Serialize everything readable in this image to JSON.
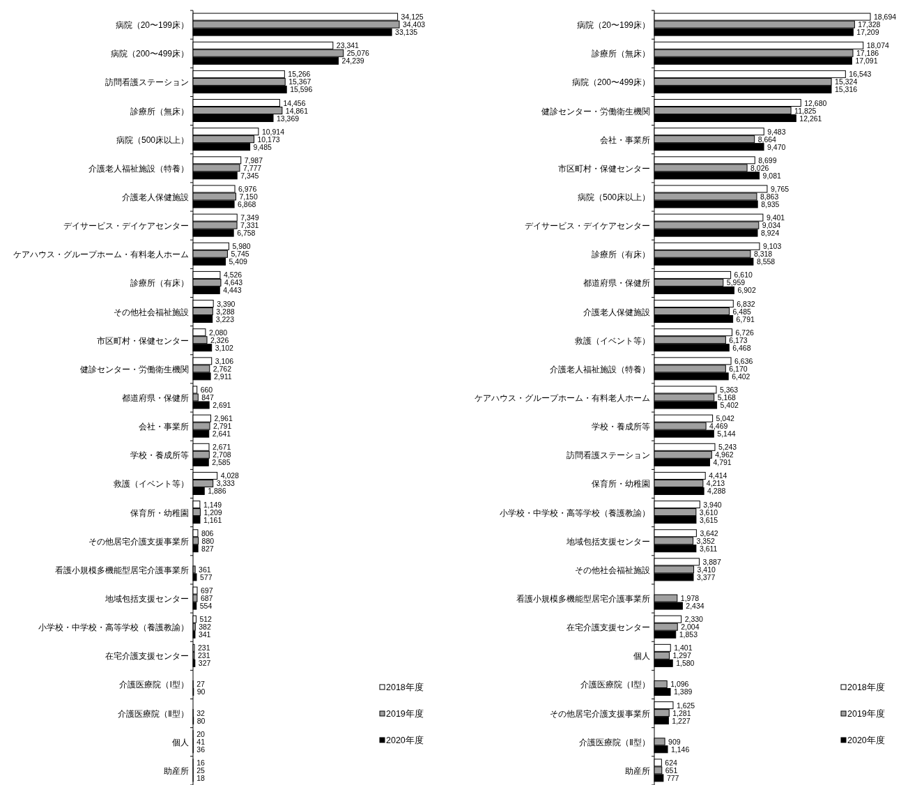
{
  "chart_data": [
    {
      "type": "bar",
      "orientation": "horizontal",
      "legend": "bottom right",
      "categories": [
        "病院（20〜199床）",
        "病院（200〜499床）",
        "訪問看護ステーション",
        "診療所（無床）",
        "病院（500床以上）",
        "介護老人福祉施設（特養）",
        "介護老人保健施設",
        "デイサービス・デイケアセンター",
        "ケアハウス・グループホーム・有料老人ホーム",
        "診療所（有床）",
        "その他社会福祉施設",
        "市区町村・保健センター",
        "健診センター・労働衛生機関",
        "都道府県・保健所",
        "会社・事業所",
        "学校・養成所等",
        "救護（イベント等）",
        "保育所・幼稚園",
        "その他居宅介護支援事業所",
        "看護小規模多機能型居宅介護事業所",
        "地域包括支援センター",
        "小学校・中学校・高等学校（養護教諭）",
        "在宅介護支援センター",
        "介護医療院（Ⅰ型）",
        "介護医療院（Ⅱ型）",
        "個人",
        "助産所"
      ],
      "series": [
        {
          "name": "2018年度",
          "color": "#ffffff",
          "values": [
            34125,
            23341,
            15266,
            14456,
            10914,
            7987,
            6976,
            7349,
            5980,
            4526,
            3390,
            2080,
            3106,
            660,
            2961,
            2671,
            4028,
            1149,
            806,
            null,
            697,
            512,
            231,
            null,
            null,
            20,
            16
          ],
          "value_labels": [
            "34,125",
            "23,341",
            "15,266",
            "14,456",
            "10,914",
            "7,987",
            "6,976",
            "7,349",
            "5,980",
            "4,526",
            "3,390",
            "2,080",
            "3,106",
            "660",
            "2,961",
            "2,671",
            "4,028",
            "1,149",
            "806",
            null,
            "697",
            "512",
            "231",
            null,
            null,
            "20",
            "16"
          ]
        },
        {
          "name": "2019年度",
          "color": "#a0a0a0",
          "values": [
            34403,
            25076,
            15367,
            14861,
            10173,
            7777,
            7150,
            7331,
            5745,
            4643,
            3288,
            2326,
            2762,
            847,
            2791,
            2708,
            3333,
            1209,
            880,
            361,
            687,
            382,
            231,
            27,
            32,
            41,
            25
          ],
          "value_labels": [
            "34,403",
            "25,076",
            "15,367",
            "14,861",
            "10,173",
            "7,777",
            "7,150",
            "7,331",
            "5,745",
            "4,643",
            "3,288",
            "2,326",
            "2,762",
            "847",
            "2,791",
            "2,708",
            "3,333",
            "1,209",
            "880",
            "361",
            "687",
            "382",
            "231",
            "27",
            "32",
            "41",
            "25"
          ]
        },
        {
          "name": "2020年度",
          "color": "#000000",
          "values": [
            33135,
            24239,
            15596,
            13369,
            9485,
            7345,
            6868,
            6758,
            5409,
            4443,
            3223,
            3102,
            2911,
            2691,
            2641,
            2585,
            1886,
            1161,
            827,
            577,
            554,
            341,
            327,
            90,
            80,
            36,
            18
          ],
          "value_labels": [
            "33,135",
            "24,239",
            "15,596",
            "13,369",
            "9,485",
            "7,345",
            "6,868",
            "6,758",
            "5,409",
            "4,443",
            "3,223",
            "3,102",
            "2,911",
            "2,691",
            "2,641",
            "2,585",
            "1,886",
            "1,161",
            "827",
            "577",
            "554",
            "341",
            "327",
            "90",
            "80",
            "36",
            "18"
          ]
        }
      ]
    },
    {
      "type": "bar",
      "orientation": "horizontal",
      "legend": "bottom right",
      "categories": [
        "病院（20〜199床）",
        "診療所（無床）",
        "病院（200〜499床）",
        "健診センター・労働衛生機関",
        "会社・事業所",
        "市区町村・保健センター",
        "病院（500床以上）",
        "デイサービス・デイケアセンター",
        "診療所（有床）",
        "都道府県・保健所",
        "介護老人保健施設",
        "救護（イベント等）",
        "介護老人福祉施設（特養）",
        "ケアハウス・グループホーム・有料老人ホーム",
        "学校・養成所等",
        "訪問看護ステーション",
        "保育所・幼稚園",
        "小学校・中学校・高等学校（養護教諭）",
        "地域包括支援センター",
        "その他社会福祉施設",
        "看護小規模多機能型居宅介護事業所",
        "在宅介護支援センター",
        "個人",
        "介護医療院（Ⅰ型）",
        "その他居宅介護支援事業所",
        "介護医療院（Ⅱ型）",
        "助産所"
      ],
      "series": [
        {
          "name": "2018年度",
          "color": "#ffffff",
          "values": [
            18694,
            18074,
            16543,
            12680,
            9483,
            8699,
            9765,
            9401,
            9103,
            6610,
            6832,
            6726,
            6636,
            5363,
            5042,
            5243,
            4414,
            3940,
            3642,
            3887,
            null,
            2330,
            1401,
            null,
            1625,
            null,
            624
          ],
          "value_labels": [
            "18,694",
            "18,074",
            "16,543",
            "12,680",
            "9,483",
            "8,699",
            "9,765",
            "9,401",
            "9,103",
            "6,610",
            "6,832",
            "6,726",
            "6,636",
            "5,363",
            "5,042",
            "5,243",
            "4,414",
            "3,940",
            "3,642",
            "3,887",
            null,
            "2,330",
            "1,401",
            null,
            "1,625",
            null,
            "624"
          ]
        },
        {
          "name": "2019年度",
          "color": "#a0a0a0",
          "values": [
            17328,
            17186,
            15324,
            11825,
            8664,
            8026,
            8863,
            9034,
            8318,
            5959,
            6485,
            6173,
            6170,
            5168,
            4469,
            4962,
            4213,
            3610,
            3352,
            3410,
            1978,
            2004,
            1297,
            1096,
            1281,
            909,
            651
          ],
          "value_labels": [
            "17,328",
            "17,186",
            "15,324",
            "11,825",
            "8,664",
            "8,026",
            "8,863",
            "9,034",
            "8,318",
            "5,959",
            "6,485",
            "6,173",
            "6,170",
            "5,168",
            "4,469",
            "4,962",
            "4,213",
            "3,610",
            "3,352",
            "3,410",
            "1,978",
            "2,004",
            "1,297",
            "1,096",
            "1,281",
            "909",
            "651"
          ]
        },
        {
          "name": "2020年度",
          "color": "#000000",
          "values": [
            17209,
            17091,
            15316,
            12261,
            9470,
            9081,
            8935,
            8924,
            8558,
            6902,
            6791,
            6468,
            6402,
            5402,
            5144,
            4791,
            4288,
            3615,
            3611,
            3377,
            2434,
            1853,
            1580,
            1389,
            1227,
            1146,
            777
          ],
          "value_labels": [
            "17,209",
            "17,091",
            "15,316",
            "12,261",
            "9,470",
            "9,081",
            "8,935",
            "8,924",
            "8,558",
            "6,902",
            "6,791",
            "6,468",
            "6,402",
            "5,402",
            "5,144",
            "4,791",
            "4,288",
            "3,615",
            "3,611",
            "3,377",
            "2,434",
            "1,853",
            "1,580",
            "1,389",
            "1,227",
            "1,146",
            "777"
          ]
        }
      ]
    }
  ]
}
